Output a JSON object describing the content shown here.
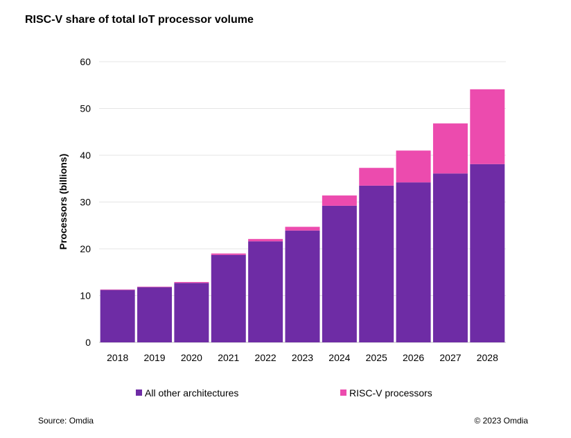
{
  "chart_data": {
    "type": "bar",
    "stacked": true,
    "title": "RISC-V share of total IoT processor volume",
    "xlabel": "",
    "ylabel": "Processors (billions)",
    "ylim": [
      0,
      60
    ],
    "yticks": [
      0,
      10,
      20,
      30,
      40,
      50,
      60
    ],
    "grid": true,
    "legend_position": "bottom",
    "categories": [
      "2018",
      "2019",
      "2020",
      "2021",
      "2022",
      "2023",
      "2024",
      "2025",
      "2026",
      "2027",
      "2028"
    ],
    "series": [
      {
        "name": "All other architectures",
        "color": "#6E2CA5",
        "values": [
          11.2,
          11.8,
          12.7,
          18.7,
          21.6,
          23.9,
          29.2,
          33.5,
          34.2,
          36.1,
          38.1
        ]
      },
      {
        "name": "RISC-V processors",
        "color": "#EC4BAE",
        "values": [
          0.1,
          0.1,
          0.2,
          0.3,
          0.5,
          0.8,
          2.2,
          3.8,
          6.8,
          10.7,
          16.0
        ]
      }
    ]
  },
  "source": "Source: Omdia",
  "copyright": "© 2023 Omdia"
}
